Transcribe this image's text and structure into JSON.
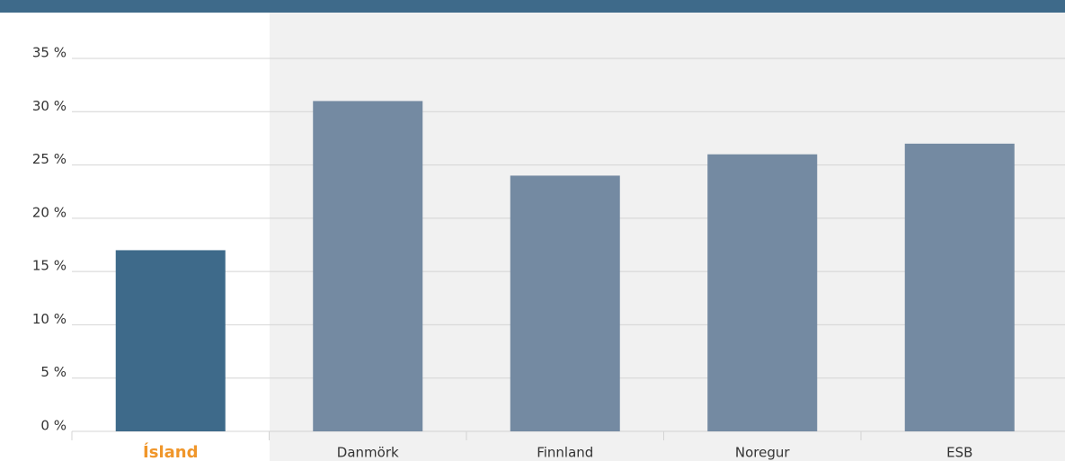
{
  "chart_data": {
    "type": "bar",
    "categories": [
      "Ísland",
      "Danmörk",
      "Finnland",
      "Noregur",
      "ESB"
    ],
    "values": [
      17,
      31,
      24,
      26,
      27
    ],
    "colors": [
      "#3e6a8a",
      "#748aa2",
      "#748aa2",
      "#748aa2",
      "#748aa2"
    ],
    "label_colors": [
      "#f0962a",
      "#333333",
      "#333333",
      "#333333",
      "#333333"
    ],
    "ylim": [
      0,
      35
    ],
    "yticks": [
      {
        "value": 0,
        "label": "0 %"
      },
      {
        "value": 5,
        "label": "5 %"
      },
      {
        "value": 10,
        "label": "10 %"
      },
      {
        "value": 15,
        "label": "15 %"
      },
      {
        "value": 20,
        "label": "20 %"
      },
      {
        "value": 25,
        "label": "25 %"
      },
      {
        "value": 30,
        "label": "30 %"
      },
      {
        "value": 35,
        "label": "35 %"
      }
    ],
    "grid": true
  }
}
